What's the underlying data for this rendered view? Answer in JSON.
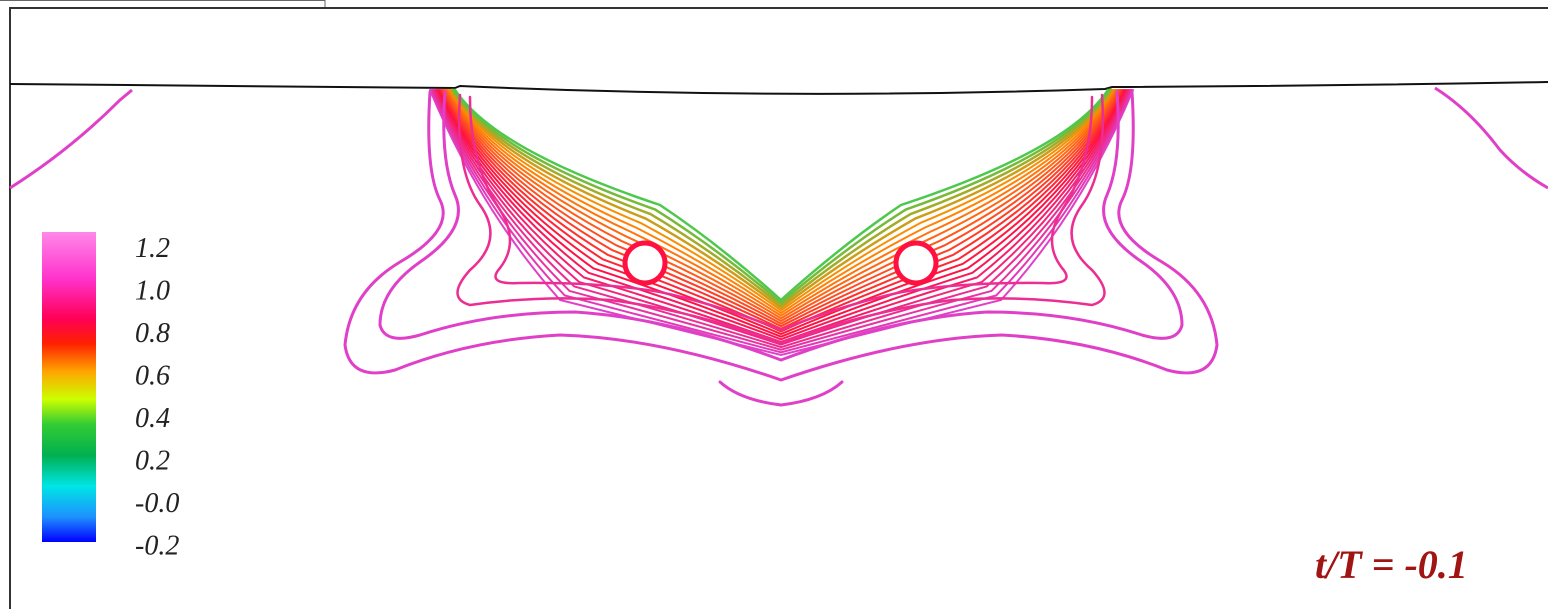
{
  "legend": {
    "ticks": [
      "1.2",
      "1.0",
      "0.8",
      "0.6",
      "0.4",
      "0.2",
      "-0.0",
      "-0.2"
    ],
    "range": [
      -0.2,
      1.2
    ],
    "colors": [
      "#0000ff",
      "#1e90ff",
      "#00e5e5",
      "#00b050",
      "#33cc33",
      "#ccff00",
      "#ffa500",
      "#ff2000",
      "#ff0055",
      "#ff33cc",
      "#ff88e8"
    ]
  },
  "time_label": "t/T =  -0.1",
  "contour_colors": {
    "outer": "#e040c8",
    "mid": "#ff1040",
    "inner": "#ff8c00",
    "core": "#4cc94c"
  },
  "surface_color": "#111111"
}
